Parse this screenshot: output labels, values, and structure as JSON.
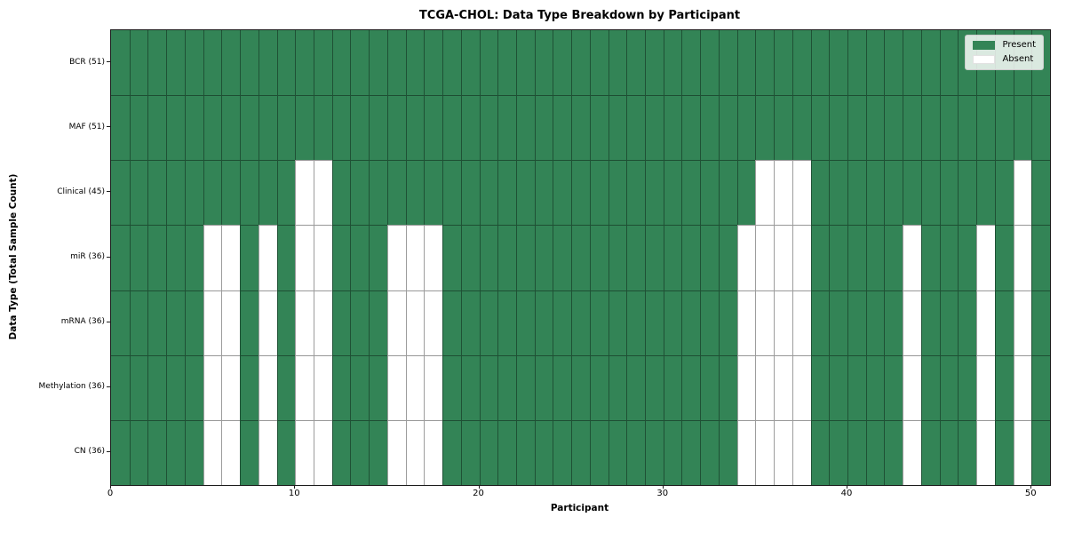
{
  "chart_data": {
    "type": "heatmap",
    "title": "TCGA-CHOL: Data Type Breakdown by Participant",
    "xlabel": "Participant",
    "ylabel": "Data Type (Total Sample Count)",
    "n_participants": 51,
    "xlim": [
      0,
      51
    ],
    "x_ticks": [
      0,
      10,
      20,
      30,
      40,
      50
    ],
    "x_tick_labels": [
      "0",
      "10",
      "20",
      "30",
      "40",
      "50"
    ],
    "cell_states": [
      "Present",
      "Absent"
    ],
    "rows": [
      {
        "label": "BCR (51)",
        "data_type": "BCR",
        "present_count": 51,
        "absent_participants": []
      },
      {
        "label": "MAF (51)",
        "data_type": "MAF",
        "present_count": 51,
        "absent_participants": []
      },
      {
        "label": "Clinical (45)",
        "data_type": "Clinical",
        "present_count": 45,
        "absent_participants": [
          10,
          11,
          35,
          36,
          37,
          49
        ]
      },
      {
        "label": "miR (36)",
        "data_type": "miR",
        "present_count": 36,
        "absent_participants": [
          5,
          6,
          8,
          10,
          11,
          15,
          16,
          17,
          34,
          35,
          36,
          37,
          43,
          47,
          49
        ]
      },
      {
        "label": "mRNA (36)",
        "data_type": "mRNA",
        "present_count": 36,
        "absent_participants": [
          5,
          6,
          8,
          10,
          11,
          15,
          16,
          17,
          34,
          35,
          36,
          37,
          43,
          47,
          49
        ]
      },
      {
        "label": "Methylation (36)",
        "data_type": "Methylation",
        "present_count": 36,
        "absent_participants": [
          5,
          6,
          8,
          10,
          11,
          15,
          16,
          17,
          34,
          35,
          36,
          37,
          43,
          47,
          49
        ]
      },
      {
        "label": "CN (36)",
        "data_type": "CN",
        "present_count": 36,
        "absent_participants": [
          5,
          6,
          8,
          10,
          11,
          15,
          16,
          17,
          34,
          35,
          36,
          37,
          43,
          47,
          49
        ]
      }
    ],
    "legend": {
      "position": "upper right",
      "items": [
        {
          "label": "Present",
          "color": "#338456"
        },
        {
          "label": "Absent",
          "color": "#ffffff"
        }
      ]
    },
    "colors": {
      "present": "#338456",
      "absent": "#ffffff",
      "cell_border": "rgba(0,0,0,0.38)",
      "spine": "#1c1c1c"
    },
    "grid": "cell borders on, matplotlib-style spines"
  }
}
